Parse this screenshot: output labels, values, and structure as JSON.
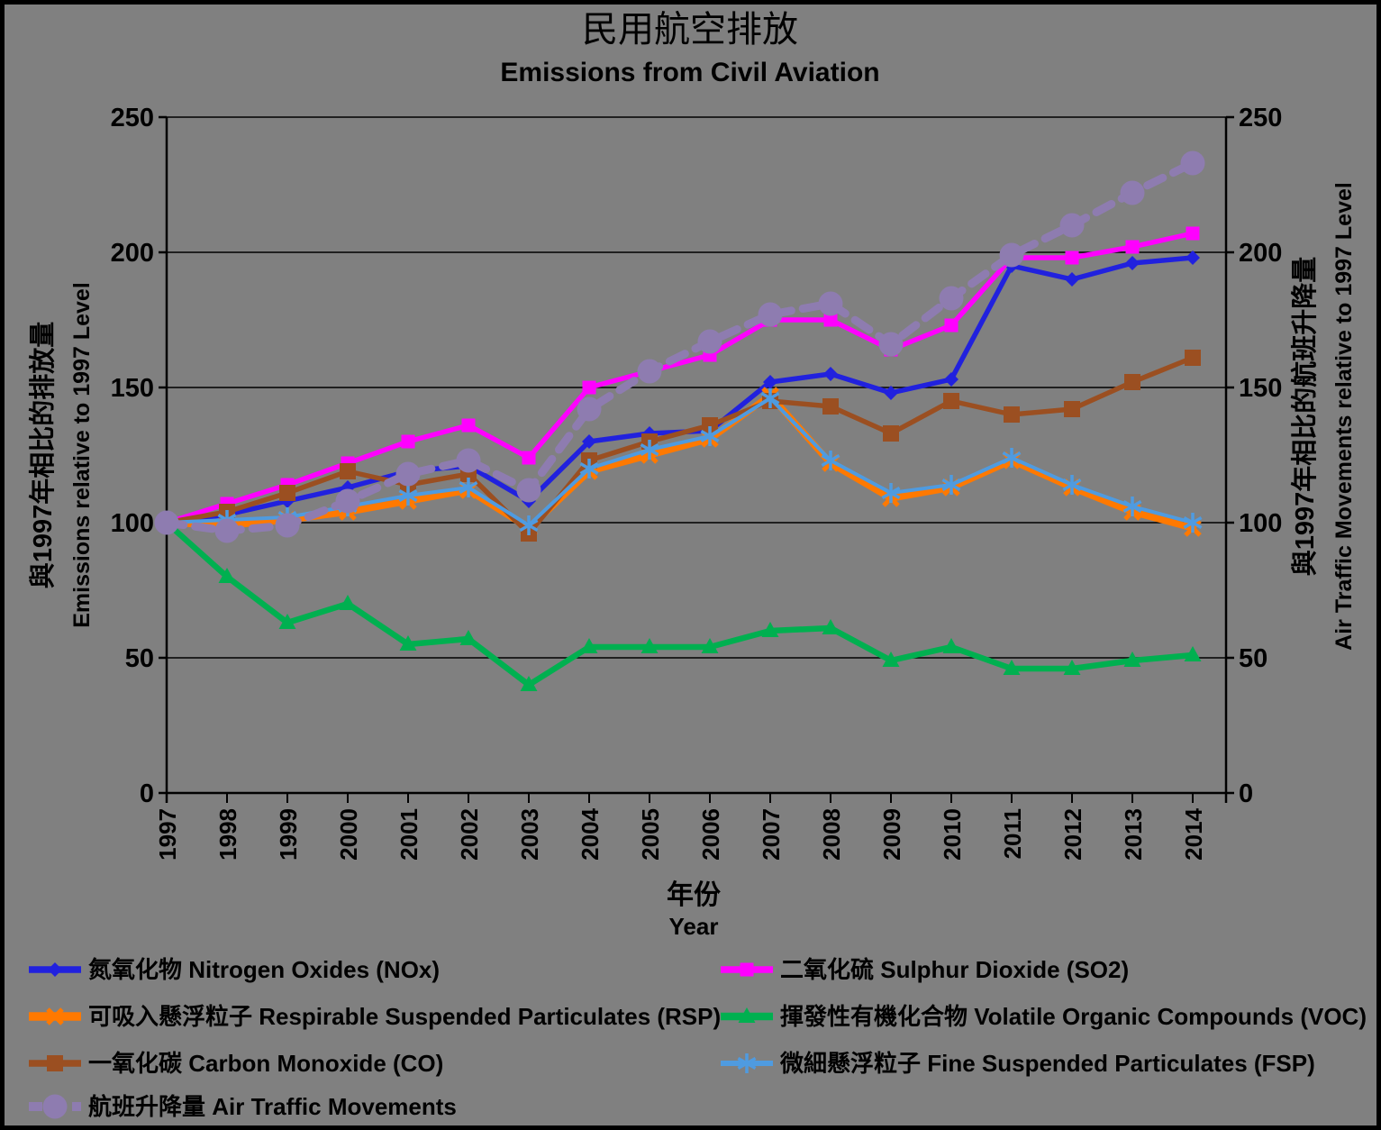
{
  "title": {
    "zh": "民用航空排放",
    "en": "Emissions from Civil Aviation"
  },
  "background_color": "#808080",
  "border_color": "#000000",
  "axes": {
    "left": {
      "title_zh": "與1997年相比的排放量",
      "title_en": "Emissions relative to 1997 Level",
      "ticks": [
        0,
        50,
        100,
        150,
        200,
        250
      ]
    },
    "right": {
      "title_zh": "與1997年相比的航班升降量",
      "title_en": "Air Traffic Movements relative to 1997 Level",
      "ticks": [
        0,
        50,
        100,
        150,
        200,
        250
      ]
    },
    "x": {
      "title_zh": "年份",
      "title_en": "Year"
    }
  },
  "chart_data": {
    "type": "line",
    "title": "民用航空排放 Emissions from Civil Aviation",
    "xlabel": "年份 Year",
    "ylabel_left": "與1997年相比的排放量 Emissions relative to 1997 Level",
    "ylabel_right": "與1997年相比的航班升降量 Air Traffic Movements relative to 1997 Level",
    "ylim": [
      0,
      250
    ],
    "grid": true,
    "legend_position": "bottom",
    "x": [
      1997,
      1998,
      1999,
      2000,
      2001,
      2002,
      2003,
      2004,
      2005,
      2006,
      2007,
      2008,
      2009,
      2010,
      2011,
      2012,
      2013,
      2014
    ],
    "series": [
      {
        "id": "nox",
        "name": "氮氧化物 Nitrogen Oxides (NOx)",
        "color": "#2121DE",
        "marker": "diamond",
        "dash": "solid",
        "line_width": 5.5,
        "legend_row": 0,
        "legend_col": 0,
        "values": [
          100,
          103,
          108,
          113,
          119,
          121,
          108,
          130,
          133,
          134,
          152,
          155,
          148,
          153,
          195,
          190,
          196,
          198
        ]
      },
      {
        "id": "so2",
        "name": "二氧化硫 Sulphur Dioxide (SO2)",
        "color": "#FF00FF",
        "marker": "square",
        "dash": "solid",
        "line_width": 5.5,
        "legend_row": 0,
        "legend_col": 1,
        "values": [
          100,
          107,
          114,
          122,
          130,
          136,
          124,
          150,
          156,
          162,
          175,
          175,
          164,
          173,
          198,
          198,
          202,
          207
        ]
      },
      {
        "id": "rsp",
        "name": "可吸入懸浮粒子 Respirable Suspended Particulates (RSP)",
        "color": "#FF7900",
        "marker": "xcross",
        "dash": "solid",
        "line_width": 7.5,
        "legend_row": 1,
        "legend_col": 0,
        "values": [
          100,
          99,
          101,
          104,
          108,
          112,
          98,
          119,
          125,
          131,
          147,
          122,
          109,
          113,
          123,
          113,
          104,
          98
        ]
      },
      {
        "id": "voc",
        "name": "揮發性有機化合物 Volatile Organic Compounds (VOC)",
        "color": "#00B050",
        "marker": "triangle",
        "dash": "solid",
        "line_width": 6.5,
        "legend_row": 1,
        "legend_col": 1,
        "values": [
          100,
          80,
          63,
          70,
          55,
          57,
          40,
          54,
          54,
          54,
          60,
          61,
          49,
          54,
          46,
          46,
          49,
          51
        ]
      },
      {
        "id": "co",
        "name": "一氧化碳 Carbon Monoxide (CO)",
        "color": "#9B4F21",
        "marker": "square_lg",
        "dash": "solid",
        "line_width": 5.5,
        "legend_row": 2,
        "legend_col": 0,
        "values": [
          100,
          104,
          111,
          119,
          114,
          118,
          96,
          123,
          130,
          136,
          145,
          143,
          133,
          145,
          140,
          142,
          152,
          161
        ]
      },
      {
        "id": "fsp",
        "name": "微細懸浮粒子 Fine Suspended Particulates (FSP)",
        "color": "#4F9BE0",
        "marker": "asterisk",
        "dash": "solid",
        "line_width": 4,
        "legend_row": 2,
        "legend_col": 1,
        "values": [
          100,
          101,
          102,
          106,
          110,
          113,
          99,
          120,
          127,
          132,
          146,
          123,
          111,
          114,
          124,
          114,
          106,
          100
        ]
      },
      {
        "id": "atm",
        "name": "航班升降量 Air Traffic Movements",
        "color": "#8E7CB0",
        "marker": "circle",
        "dash": "dashed",
        "line_width": 9,
        "legend_row": 3,
        "legend_col": 0,
        "values": [
          100,
          97,
          99,
          108,
          118,
          123,
          112,
          142,
          156,
          167,
          177,
          181,
          166,
          183,
          199,
          210,
          222,
          233
        ]
      }
    ]
  }
}
